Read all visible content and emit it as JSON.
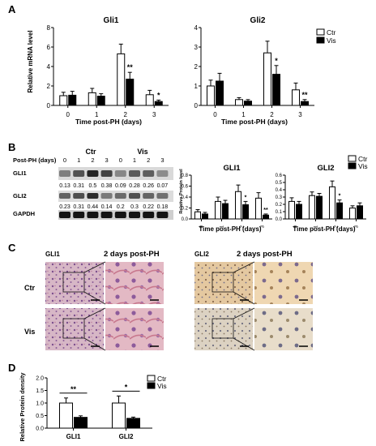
{
  "panels": {
    "A": "A",
    "B": "B",
    "C": "C",
    "D": "D"
  },
  "legend": {
    "ctr": "Ctr",
    "vis": "Vis"
  },
  "panel_a": {
    "ylabel": "Relative mRNA level",
    "xlabel": "Time post-PH (days)"
  },
  "panel_b": {
    "row_header": "Post-PH (days)",
    "groups": [
      "Ctr",
      "Vis"
    ],
    "lanes": [
      "0",
      "1",
      "2",
      "3",
      "0",
      "1",
      "2",
      "3"
    ],
    "bands": [
      "GLI1",
      "GLI2",
      "GAPDH"
    ],
    "gli1_values": [
      "0.13",
      "0.31",
      "0.5",
      "0.38",
      "0.09",
      "0.28",
      "0.26",
      "0.07"
    ],
    "gli2_values": [
      "0.23",
      "0.31",
      "0.44",
      "0.14",
      "0.2",
      "0.3",
      "0.22",
      "0.18"
    ],
    "ylabel": "Relative Protein level",
    "xlabel": "Time post-PH (days)"
  },
  "panel_c": {
    "title1": "GLI1",
    "subtitle1": "2 days post-PH",
    "title2": "GLI2",
    "subtitle2": "2 days post-PH",
    "row_ctr": "Ctr",
    "row_vis": "Vis"
  },
  "panel_d": {
    "ylabel": "Relative Protein density"
  },
  "colors": {
    "ctr": "#ffffff",
    "vis": "#000000",
    "ihc_gli1": "#c9a0b6",
    "ihc_gli2": "#d9b98a"
  },
  "chart_data": [
    {
      "id": "a1",
      "type": "bar",
      "title": "Gli1",
      "categories": [
        "0",
        "1",
        "2",
        "3"
      ],
      "series": [
        {
          "name": "Ctr",
          "values": [
            1.0,
            1.3,
            5.3,
            1.1
          ],
          "errors": [
            0.35,
            0.45,
            1.0,
            0.45
          ]
        },
        {
          "name": "Vis",
          "values": [
            1.05,
            0.95,
            2.7,
            0.4
          ],
          "errors": [
            0.4,
            0.25,
            0.7,
            0.15
          ]
        }
      ],
      "yticks": [
        "0",
        "2",
        "4",
        "6",
        "8"
      ],
      "ylim": [
        0,
        8
      ],
      "annotations": [
        {
          "category": "2",
          "text": "**"
        },
        {
          "category": "3",
          "text": "*"
        }
      ]
    },
    {
      "id": "a2",
      "type": "bar",
      "title": "Gli2",
      "categories": [
        "0",
        "1",
        "2",
        "3"
      ],
      "series": [
        {
          "name": "Ctr",
          "values": [
            1.0,
            0.3,
            2.7,
            0.8
          ],
          "errors": [
            0.3,
            0.1,
            0.6,
            0.35
          ]
        },
        {
          "name": "Vis",
          "values": [
            1.25,
            0.22,
            1.6,
            0.2
          ],
          "errors": [
            0.4,
            0.08,
            0.45,
            0.1
          ]
        }
      ],
      "yticks": [
        "0",
        "1",
        "2",
        "3",
        "4"
      ],
      "ylim": [
        0,
        4
      ],
      "annotations": [
        {
          "category": "2",
          "text": "*"
        },
        {
          "category": "3",
          "text": "**"
        }
      ]
    },
    {
      "id": "b1",
      "type": "bar",
      "title": "GLI1",
      "categories": [
        "0",
        "1",
        "2",
        "3"
      ],
      "series": [
        {
          "name": "Ctr",
          "values": [
            0.13,
            0.32,
            0.5,
            0.38
          ],
          "errors": [
            0.04,
            0.08,
            0.12,
            0.1
          ]
        },
        {
          "name": "Vis",
          "values": [
            0.09,
            0.28,
            0.26,
            0.07
          ],
          "errors": [
            0.03,
            0.06,
            0.06,
            0.02
          ]
        }
      ],
      "yticks": [
        "0.0",
        "0.2",
        "0.4",
        "0.6",
        "0.8"
      ],
      "ylim": [
        0,
        0.8
      ],
      "annotations": [
        {
          "category": "2",
          "text": "*"
        },
        {
          "category": "3",
          "text": "**"
        }
      ]
    },
    {
      "id": "b2",
      "type": "bar",
      "title": "GLI2",
      "categories": [
        "0",
        "1",
        "2",
        "3"
      ],
      "series": [
        {
          "name": "Ctr",
          "values": [
            0.24,
            0.32,
            0.44,
            0.15
          ],
          "errors": [
            0.05,
            0.05,
            0.08,
            0.03
          ]
        },
        {
          "name": "Vis",
          "values": [
            0.2,
            0.31,
            0.22,
            0.18
          ],
          "errors": [
            0.04,
            0.04,
            0.04,
            0.04
          ]
        }
      ],
      "yticks": [
        "0.0",
        "0.1",
        "0.2",
        "0.3",
        "0.4",
        "0.5",
        "0.6"
      ],
      "ylim": [
        0,
        0.6
      ],
      "annotations": [
        {
          "category": "2",
          "text": "*"
        }
      ]
    },
    {
      "id": "d",
      "type": "bar",
      "categories": [
        "GLI1",
        "GLI2"
      ],
      "series": [
        {
          "name": "Ctr",
          "values": [
            1.0,
            1.0
          ],
          "errors": [
            0.2,
            0.28
          ]
        },
        {
          "name": "Vis",
          "values": [
            0.43,
            0.39
          ],
          "errors": [
            0.06,
            0.05
          ]
        }
      ],
      "yticks": [
        "0.0",
        "0.5",
        "1.0",
        "1.5",
        "2.0"
      ],
      "ylim": [
        0,
        2.0
      ],
      "annotations": [
        {
          "category": "GLI1",
          "text": "**"
        },
        {
          "category": "GLI2",
          "text": "*"
        }
      ]
    }
  ]
}
